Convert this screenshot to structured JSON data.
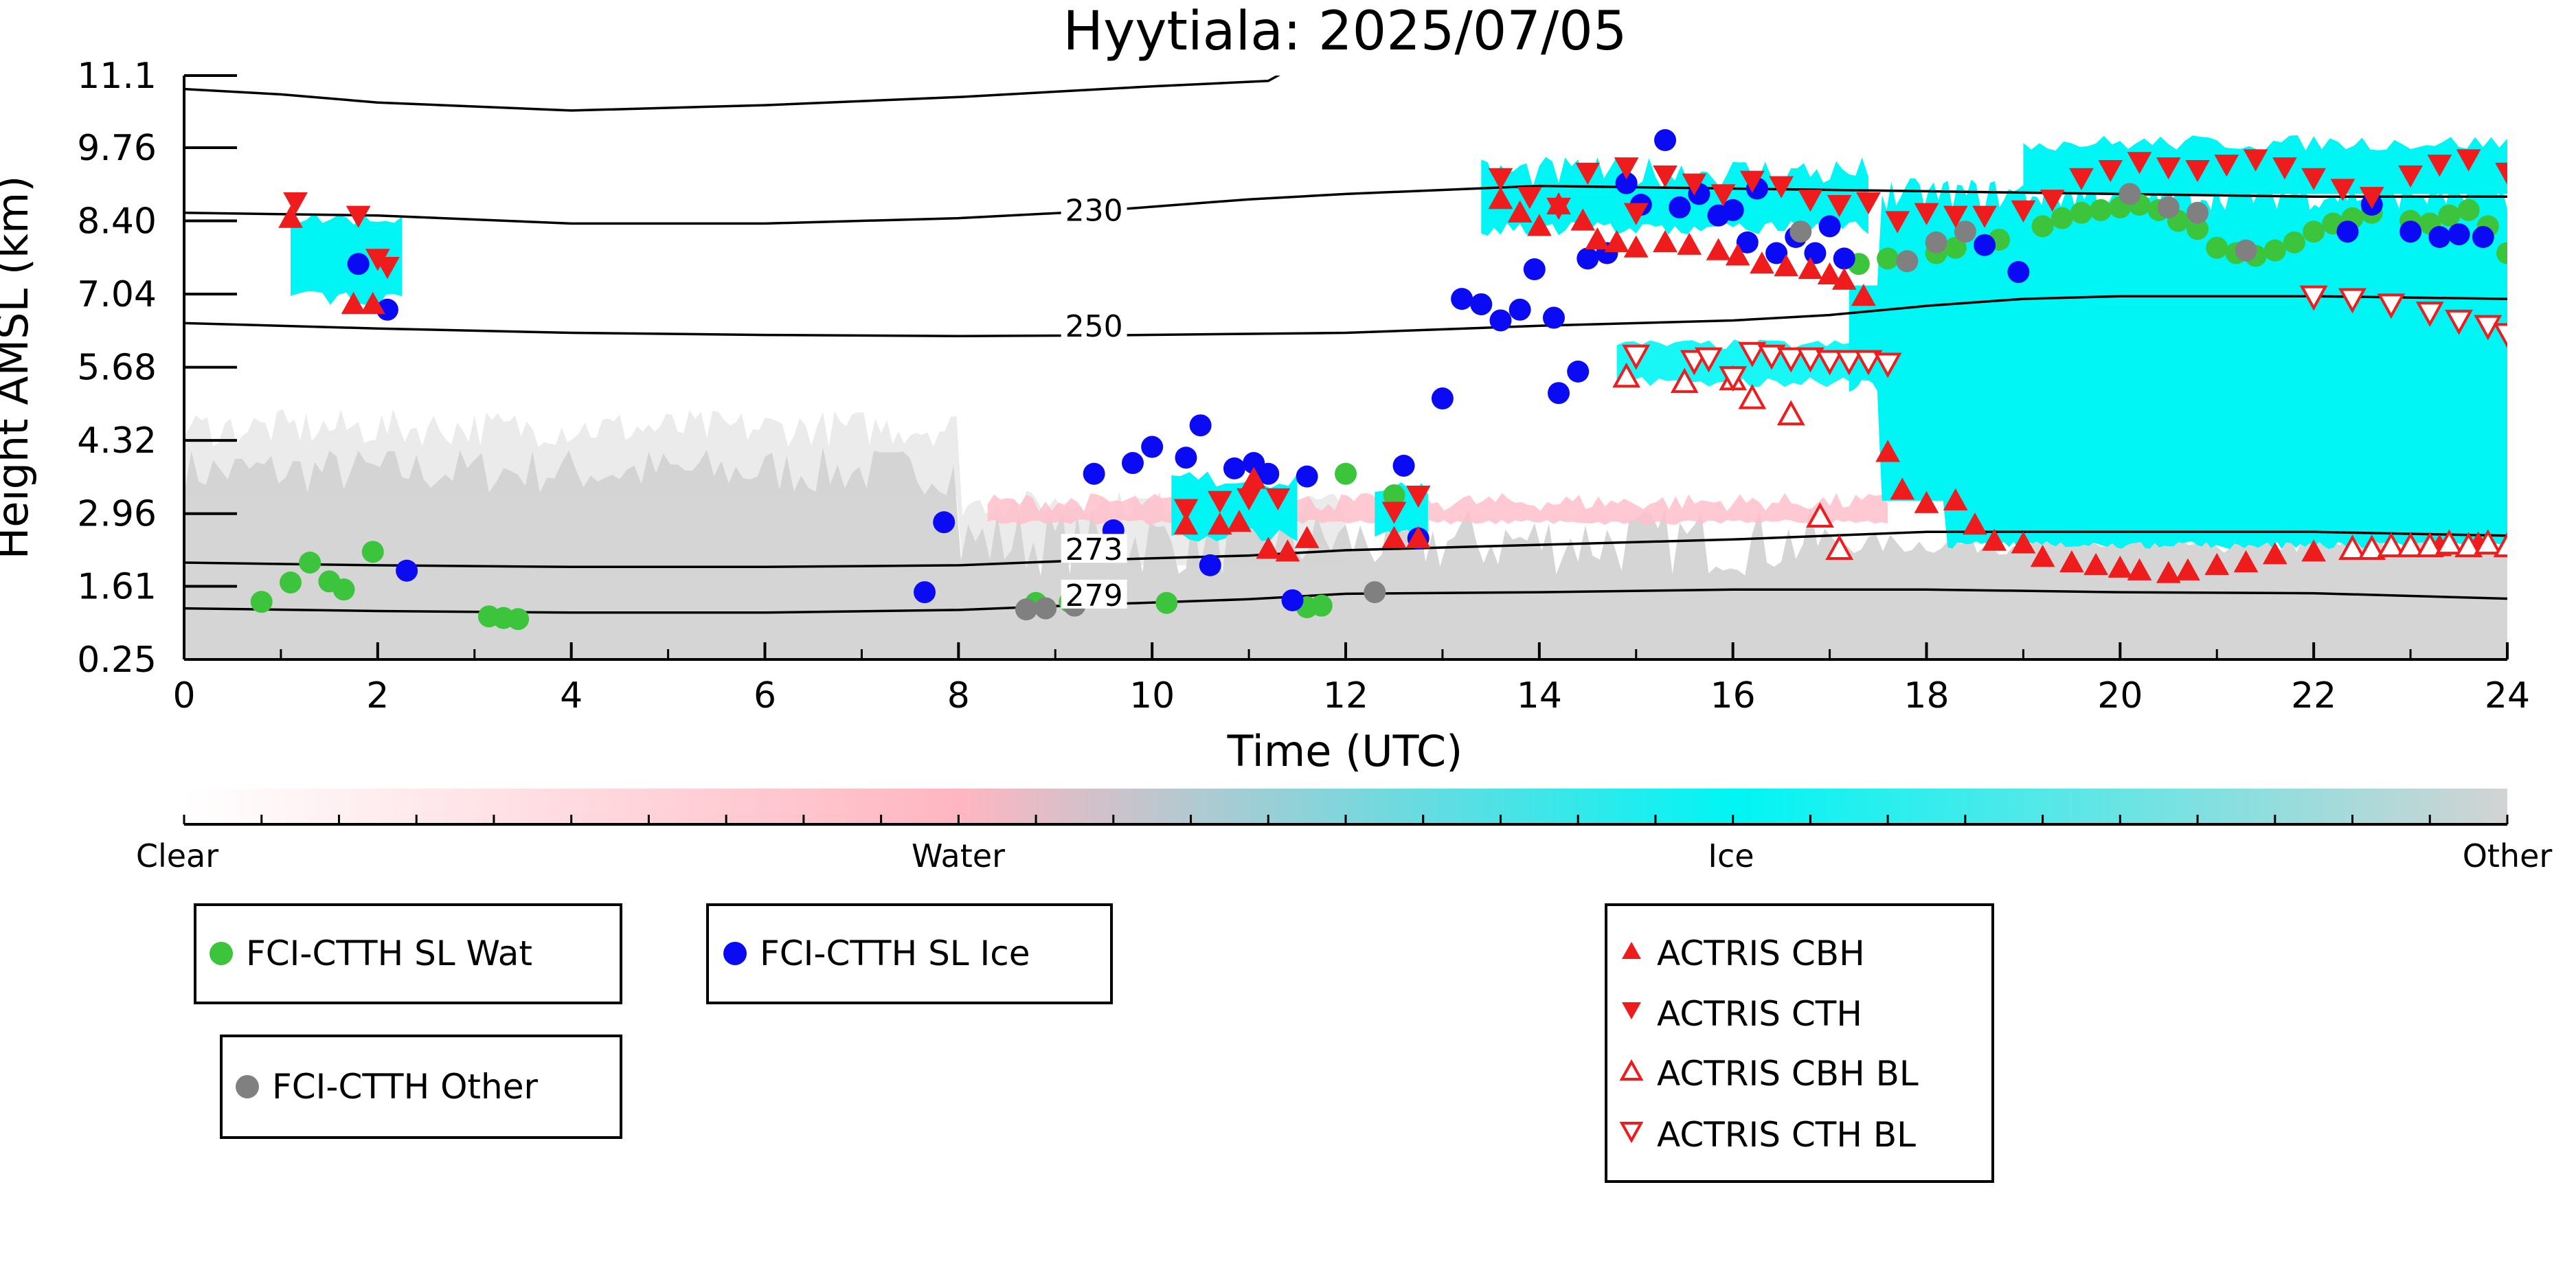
{
  "chart_data": {
    "type": "scatter",
    "title": "Hyytiala: 2025/07/05",
    "xlabel": "Time (UTC)",
    "ylabel": "Height AMSL (km)",
    "xlim": [
      0,
      24
    ],
    "ylim": [
      0.25,
      11.1
    ],
    "x_ticks": [
      0,
      2,
      4,
      6,
      8,
      10,
      12,
      14,
      16,
      18,
      20,
      22,
      24
    ],
    "y_ticks": [
      "0.25",
      "1.61",
      "2.96",
      "4.32",
      "5.68",
      "7.04",
      "8.40",
      "9.76",
      "11.1"
    ],
    "grid": false,
    "colorbar": {
      "labels": [
        "Clear",
        "Water",
        "Ice",
        "Other"
      ],
      "colors": [
        "#ffffff",
        "#ffb6c1",
        "#00f5f5",
        "#d3d3d3"
      ]
    },
    "background_colors": {
      "ice": "#00f5f5",
      "water": "#ffc0cb",
      "other": "#d3d3d3"
    },
    "contours": [
      {
        "label": "",
        "points": [
          [
            0,
            10.85
          ],
          [
            1,
            10.75
          ],
          [
            2,
            10.6
          ],
          [
            4,
            10.45
          ],
          [
            6,
            10.55
          ],
          [
            8,
            10.7
          ],
          [
            10,
            10.9
          ],
          [
            11.2,
            11.0
          ],
          [
            11.35,
            11.15
          ]
        ]
      },
      {
        "label": "230",
        "label_x": 9.4,
        "label_y": 8.5,
        "points": [
          [
            0,
            8.55
          ],
          [
            2,
            8.5
          ],
          [
            4,
            8.35
          ],
          [
            6,
            8.35
          ],
          [
            8,
            8.45
          ],
          [
            9.4,
            8.58
          ],
          [
            11,
            8.8
          ],
          [
            12,
            8.9
          ],
          [
            14,
            9.05
          ],
          [
            16,
            9.0
          ],
          [
            18,
            8.95
          ],
          [
            20,
            8.9
          ],
          [
            22,
            8.85
          ],
          [
            24,
            8.85
          ]
        ]
      },
      {
        "label": "250",
        "label_x": 9.4,
        "label_y": 6.35,
        "points": [
          [
            0,
            6.5
          ],
          [
            2,
            6.4
          ],
          [
            4,
            6.32
          ],
          [
            6,
            6.28
          ],
          [
            8,
            6.26
          ],
          [
            9.4,
            6.27
          ],
          [
            11,
            6.3
          ],
          [
            12,
            6.32
          ],
          [
            14,
            6.45
          ],
          [
            16,
            6.55
          ],
          [
            17,
            6.65
          ],
          [
            18,
            6.82
          ],
          [
            19,
            6.95
          ],
          [
            20,
            7.0
          ],
          [
            22,
            7.0
          ],
          [
            24,
            6.95
          ]
        ]
      },
      {
        "label": "273",
        "label_x": 9.4,
        "label_y": 2.2,
        "points": [
          [
            0,
            2.05
          ],
          [
            2,
            2.0
          ],
          [
            4,
            1.97
          ],
          [
            6,
            1.97
          ],
          [
            8,
            2.0
          ],
          [
            9.4,
            2.1
          ],
          [
            11,
            2.18
          ],
          [
            12,
            2.28
          ],
          [
            14,
            2.38
          ],
          [
            16,
            2.48
          ],
          [
            17,
            2.55
          ],
          [
            18,
            2.62
          ],
          [
            20,
            2.62
          ],
          [
            22,
            2.62
          ],
          [
            24,
            2.55
          ]
        ]
      },
      {
        "label": "279",
        "label_x": 9.4,
        "label_y": 1.35,
        "points": [
          [
            0,
            1.2
          ],
          [
            2,
            1.15
          ],
          [
            4,
            1.12
          ],
          [
            6,
            1.12
          ],
          [
            8,
            1.17
          ],
          [
            9.4,
            1.27
          ],
          [
            11,
            1.37
          ],
          [
            12,
            1.47
          ],
          [
            14,
            1.5
          ],
          [
            16,
            1.55
          ],
          [
            18,
            1.55
          ],
          [
            20,
            1.5
          ],
          [
            22,
            1.48
          ],
          [
            24,
            1.38
          ]
        ]
      }
    ],
    "series": [
      {
        "name": "FCI-CTTH SL Wat",
        "marker": "circle",
        "color": "#3cc43c",
        "x": [
          0.8,
          1.1,
          1.3,
          1.5,
          1.65,
          1.95,
          3.15,
          3.3,
          3.45,
          8.8,
          9.15,
          10.15,
          11.6,
          11.75,
          12.0,
          12.5,
          17.3,
          17.6,
          17.8,
          18.1,
          18.3,
          18.75,
          19.2,
          19.4,
          19.6,
          19.8,
          20.0,
          20.2,
          20.4,
          20.6,
          20.8,
          21.0,
          21.2,
          21.4,
          21.6,
          21.8,
          22.0,
          22.2,
          22.4,
          22.6,
          23.0,
          23.2,
          23.4,
          23.6,
          23.8,
          24.0
        ],
        "y": [
          1.32,
          1.68,
          2.05,
          1.7,
          1.55,
          2.25,
          1.05,
          1.02,
          1.0,
          1.3,
          1.32,
          1.3,
          1.22,
          1.25,
          3.7,
          3.3,
          7.6,
          7.7,
          7.65,
          7.8,
          7.9,
          8.05,
          8.3,
          8.45,
          8.55,
          8.6,
          8.65,
          8.7,
          8.6,
          8.4,
          8.25,
          7.9,
          7.8,
          7.75,
          7.85,
          8.0,
          8.2,
          8.35,
          8.45,
          8.55,
          8.4,
          8.35,
          8.5,
          8.6,
          8.3,
          7.8
        ]
      },
      {
        "name": "FCI-CTTH SL Ice",
        "marker": "circle",
        "color": "#0a0af5",
        "x": [
          1.8,
          2.1,
          2.3,
          7.65,
          7.85,
          9.4,
          9.6,
          9.8,
          10.0,
          10.35,
          10.5,
          10.6,
          10.85,
          11.05,
          11.2,
          11.45,
          11.6,
          12.6,
          12.75,
          13.0,
          13.2,
          13.4,
          13.6,
          13.8,
          13.95,
          14.15,
          14.2,
          14.4,
          14.5,
          14.7,
          14.9,
          15.05,
          15.3,
          15.45,
          15.65,
          15.85,
          16.0,
          16.15,
          16.25,
          16.45,
          16.65,
          16.85,
          17.0,
          17.15,
          18.6,
          18.95,
          22.35,
          22.6,
          23.0,
          23.3,
          23.5,
          23.75
        ],
        "y": [
          7.6,
          6.75,
          1.9,
          1.5,
          2.8,
          3.7,
          2.65,
          3.9,
          4.2,
          4.0,
          4.6,
          2.0,
          3.8,
          3.9,
          3.7,
          1.35,
          3.65,
          3.85,
          2.5,
          5.1,
          6.95,
          6.85,
          6.55,
          6.75,
          7.5,
          6.6,
          5.2,
          5.6,
          7.7,
          7.8,
          9.1,
          8.7,
          9.9,
          8.65,
          8.9,
          8.5,
          8.6,
          8.0,
          9.0,
          7.8,
          8.1,
          7.8,
          8.3,
          7.7,
          7.95,
          7.45,
          8.2,
          8.7,
          8.2,
          8.1,
          8.15,
          8.1
        ]
      },
      {
        "name": "FCI-CTTH Other",
        "marker": "circle",
        "color": "#808080",
        "x": [
          8.7,
          8.9,
          9.2,
          12.3,
          16.7,
          17.8,
          18.1,
          18.4,
          20.1,
          20.5,
          20.8,
          21.3
        ],
        "y": [
          1.18,
          1.2,
          1.25,
          1.5,
          8.2,
          7.65,
          8.0,
          8.2,
          8.9,
          8.65,
          8.55,
          7.85
        ]
      },
      {
        "name": "ACTRIS CBH",
        "marker": "triangle-up",
        "color": "#ee1c1c",
        "x": [
          1.1,
          1.75,
          1.95,
          10.35,
          10.7,
          10.9,
          11.05,
          11.2,
          11.4,
          11.6,
          12.5,
          12.75,
          13.6,
          13.8,
          14.0,
          14.2,
          14.45,
          14.6,
          14.8,
          15.0,
          15.3,
          15.55,
          15.85,
          16.05,
          16.3,
          16.55,
          16.8,
          17.0,
          17.15,
          17.35,
          17.6,
          17.75,
          18.0,
          18.3,
          18.5,
          18.7,
          19.0,
          19.2,
          19.5,
          19.75,
          20.0,
          20.2,
          20.5,
          20.7,
          21.0,
          21.3,
          21.6,
          22.0,
          22.4,
          22.8,
          23.3,
          23.7,
          24.0
        ],
        "y": [
          8.45,
          6.85,
          6.85,
          2.75,
          2.75,
          2.8,
          3.6,
          2.3,
          2.25,
          2.5,
          2.5,
          2.5,
          8.8,
          8.55,
          8.3,
          8.7,
          8.4,
          8.05,
          8.0,
          7.9,
          8.0,
          7.95,
          7.85,
          7.75,
          7.6,
          7.55,
          7.5,
          7.4,
          7.3,
          7.0,
          4.1,
          3.4,
          3.15,
          3.2,
          2.75,
          2.45,
          2.4,
          2.15,
          2.05,
          2.0,
          1.95,
          1.9,
          1.85,
          1.9,
          2.0,
          2.05,
          2.2,
          2.25,
          2.3,
          2.35,
          2.35,
          2.4,
          2.35
        ]
      },
      {
        "name": "ACTRIS CTH",
        "marker": "triangle-down",
        "color": "#ee1c1c",
        "x": [
          1.15,
          1.8,
          2.0,
          2.1,
          10.35,
          10.7,
          11.0,
          11.3,
          12.5,
          12.75,
          13.6,
          13.9,
          14.2,
          14.5,
          14.9,
          15.0,
          15.3,
          15.6,
          15.9,
          16.2,
          16.5,
          16.8,
          17.1,
          17.4,
          17.7,
          18.0,
          18.3,
          18.6,
          19.0,
          19.3,
          19.6,
          19.9,
          20.2,
          20.5,
          20.8,
          21.1,
          21.4,
          21.7,
          22.0,
          22.3,
          22.6,
          23.0,
          23.3,
          23.6,
          24.0
        ],
        "y": [
          8.75,
          8.5,
          7.7,
          7.55,
          3.05,
          3.2,
          3.25,
          3.25,
          3.0,
          3.3,
          9.2,
          8.85,
          8.65,
          9.3,
          9.4,
          8.55,
          9.25,
          9.1,
          8.9,
          9.15,
          9.05,
          8.8,
          8.7,
          8.75,
          8.4,
          8.55,
          8.5,
          8.5,
          8.6,
          8.8,
          9.2,
          9.35,
          9.5,
          9.4,
          9.35,
          9.45,
          9.55,
          9.4,
          9.2,
          9.0,
          8.85,
          9.25,
          9.45,
          9.55,
          9.3
        ]
      },
      {
        "name": "ACTRIS CBH BL",
        "marker": "triangle-up-open",
        "color": "#ee1c1c",
        "x": [
          14.9,
          15.5,
          16.0,
          16.2,
          16.6,
          16.9,
          17.1,
          22.4,
          22.6,
          22.8,
          23.0,
          23.2,
          23.4,
          23.6,
          23.8,
          24.0
        ],
        "y": [
          5.5,
          5.4,
          5.45,
          5.1,
          4.8,
          2.9,
          2.3,
          2.3,
          2.3,
          2.35,
          2.35,
          2.35,
          2.4,
          2.35,
          2.4,
          2.35
        ]
      },
      {
        "name": "ACTRIS CTH BL",
        "marker": "triangle-down-open",
        "color": "#ee1c1c",
        "x": [
          15.0,
          15.6,
          15.75,
          16.0,
          16.2,
          16.4,
          16.6,
          16.8,
          17.0,
          17.2,
          17.4,
          17.6,
          22.0,
          22.4,
          22.8,
          23.2,
          23.5,
          23.8,
          24.0
        ],
        "y": [
          5.9,
          5.8,
          5.85,
          5.5,
          5.95,
          5.9,
          5.85,
          5.85,
          5.8,
          5.8,
          5.8,
          5.75,
          7.0,
          6.95,
          6.85,
          6.7,
          6.55,
          6.45,
          6.3
        ]
      }
    ]
  },
  "legends": {
    "box1": [
      {
        "label": "FCI-CTTH SL Wat",
        "marker": "circle",
        "color": "#3cc43c"
      }
    ],
    "box2": [
      {
        "label": "FCI-CTTH SL Ice",
        "marker": "circle",
        "color": "#0a0af5"
      }
    ],
    "box3": [
      {
        "label": "FCI-CTTH Other",
        "marker": "circle",
        "color": "#808080"
      }
    ],
    "box4": [
      {
        "label": "ACTRIS CBH",
        "marker": "triangle-up",
        "color": "#ee1c1c"
      },
      {
        "label": "ACTRIS CTH",
        "marker": "triangle-down",
        "color": "#ee1c1c"
      },
      {
        "label": "ACTRIS CBH BL",
        "marker": "triangle-up-open",
        "color": "#ee1c1c"
      },
      {
        "label": "ACTRIS CTH BL",
        "marker": "triangle-down-open",
        "color": "#ee1c1c"
      }
    ]
  }
}
